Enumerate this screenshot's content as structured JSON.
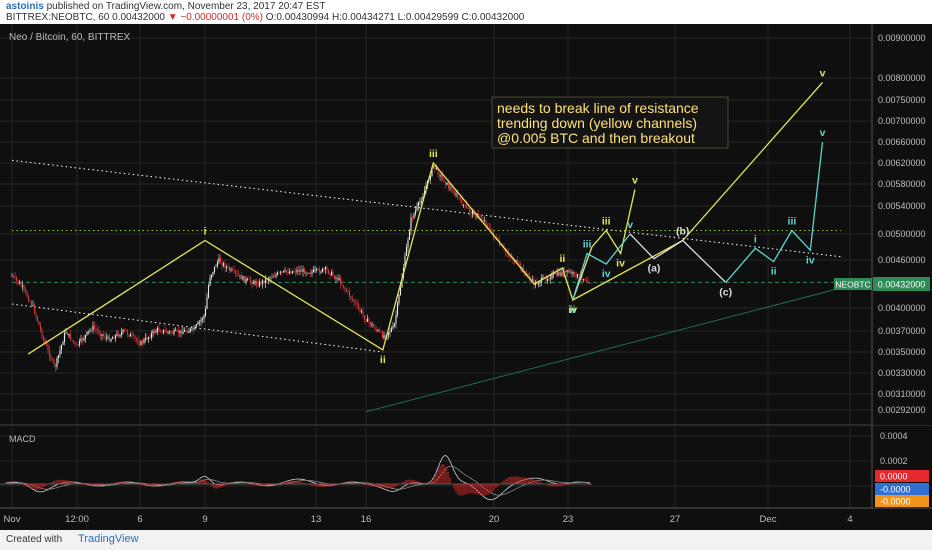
{
  "header": {
    "username": "astoinis",
    "published_text": "published on TradingView.com, November 23, 2017 20:47 EST",
    "symbol_line": "BITTREX:NEOBTC, 60",
    "price": "0.00432000",
    "change": "▼ −0.00000001 (0%)",
    "ohlc": "O:0.00430994 H:0.00434271 L:0.00429599 C:0.00432000"
  },
  "footer": {
    "created_with": "Created with",
    "brand": "TradingView"
  },
  "chart_data": [
    {
      "type": "line",
      "title": "Neo / Bitcoin, 60, BITTREX",
      "x_tick_labels": [
        "Nov",
        "12:00",
        "6",
        "9",
        "13",
        "16",
        "20",
        "23",
        "27",
        "Dec",
        "4"
      ],
      "y_tick_labels": [
        "0.00900000",
        "0.00800000",
        "0.00750000",
        "0.00700000",
        "0.00660000",
        "0.00620000",
        "0.00580000",
        "0.00540000",
        "0.00500000",
        "0.00460000",
        "0.00400000",
        "0.00370000",
        "0.00350000",
        "0.00330000",
        "0.00310000",
        "0.00292000"
      ],
      "last_price_label": {
        "symbol": "NEOBTC",
        "value": "0.00432000"
      },
      "annotation": [
        "needs to break line of resistance",
        "trending down (yellow channels)",
        "@0.005 BTC and then breakout"
      ],
      "price_series_approx": [
        {
          "date": "2017-11-05 00:00",
          "value": 0.0044
        },
        {
          "date": "2017-11-05 08:00",
          "value": 0.00425
        },
        {
          "date": "2017-11-05 16:00",
          "value": 0.004
        },
        {
          "date": "2017-11-06 00:00",
          "value": 0.0036
        },
        {
          "date": "2017-11-06 08:00",
          "value": 0.00335
        },
        {
          "date": "2017-11-06 16:00",
          "value": 0.0037
        },
        {
          "date": "2017-11-07 00:00",
          "value": 0.00355
        },
        {
          "date": "2017-11-07 12:00",
          "value": 0.00375
        },
        {
          "date": "2017-11-08 00:00",
          "value": 0.00362
        },
        {
          "date": "2017-11-08 12:00",
          "value": 0.0037
        },
        {
          "date": "2017-11-09 00:00",
          "value": 0.00358
        },
        {
          "date": "2017-11-09 12:00",
          "value": 0.00372
        },
        {
          "date": "2017-11-10 00:00",
          "value": 0.00368
        },
        {
          "date": "2017-11-10 16:00",
          "value": 0.00372
        },
        {
          "date": "2017-11-11 00:00",
          "value": 0.00392
        },
        {
          "date": "2017-11-11 04:00",
          "value": 0.00438
        },
        {
          "date": "2017-11-11 12:00",
          "value": 0.0046
        },
        {
          "date": "2017-11-12 00:00",
          "value": 0.00445
        },
        {
          "date": "2017-11-12 12:00",
          "value": 0.00435
        },
        {
          "date": "2017-11-13 00:00",
          "value": 0.0043
        },
        {
          "date": "2017-11-13 12:00",
          "value": 0.0044
        },
        {
          "date": "2017-11-14 00:00",
          "value": 0.00445
        },
        {
          "date": "2017-11-14 12:00",
          "value": 0.00447
        },
        {
          "date": "2017-11-15 00:00",
          "value": 0.00445
        },
        {
          "date": "2017-11-15 12:00",
          "value": 0.00448
        },
        {
          "date": "2017-11-16 00:00",
          "value": 0.00435
        },
        {
          "date": "2017-11-16 12:00",
          "value": 0.0041
        },
        {
          "date": "2017-11-17 00:00",
          "value": 0.00385
        },
        {
          "date": "2017-11-17 12:00",
          "value": 0.00365
        },
        {
          "date": "2017-11-17 20:00",
          "value": 0.00375
        },
        {
          "date": "2017-11-18 00:00",
          "value": 0.0042
        },
        {
          "date": "2017-11-18 08:00",
          "value": 0.0052
        },
        {
          "date": "2017-11-18 16:00",
          "value": 0.00555
        },
        {
          "date": "2017-11-19 00:00",
          "value": 0.00615
        },
        {
          "date": "2017-11-19 08:00",
          "value": 0.00585
        },
        {
          "date": "2017-11-19 16:00",
          "value": 0.0056
        },
        {
          "date": "2017-11-20 00:00",
          "value": 0.00535
        },
        {
          "date": "2017-11-20 12:00",
          "value": 0.0052
        },
        {
          "date": "2017-11-21 00:00",
          "value": 0.0048
        },
        {
          "date": "2017-11-21 12:00",
          "value": 0.00455
        },
        {
          "date": "2017-11-22 00:00",
          "value": 0.0043
        },
        {
          "date": "2017-11-22 12:00",
          "value": 0.0044
        },
        {
          "date": "2017-11-23 00:00",
          "value": 0.00445
        },
        {
          "date": "2017-11-23 12:00",
          "value": 0.00438
        },
        {
          "date": "2017-11-23 20:00",
          "value": 0.00432
        }
      ],
      "wave_paths": [
        {
          "color": "#e6e65a",
          "points": [
            {
              "date": "2017-11-05 12:00",
              "value": 0.00348,
              "label": ""
            },
            {
              "date": "2017-11-11 00:00",
              "value": 0.0049,
              "label": "i"
            },
            {
              "date": "2017-11-17 12:00",
              "value": 0.00352,
              "label": "ii"
            },
            {
              "date": "2017-11-19 00:00",
              "value": 0.0062,
              "label": "iii"
            },
            {
              "date": "2017-11-22 00:00",
              "value": 0.0043,
              "label": ""
            },
            {
              "date": "2017-11-22 20:00",
              "value": 0.0045,
              "label": "ii"
            },
            {
              "date": "2017-11-23 04:00",
              "value": 0.0041,
              "label": ""
            },
            {
              "date": "2017-11-23 20:00",
              "value": 0.0048,
              "label": ""
            },
            {
              "date": "2017-11-24 08:00",
              "value": 0.00505,
              "label": "iii"
            },
            {
              "date": "2017-11-24 20:00",
              "value": 0.0047,
              "label": "iv"
            },
            {
              "date": "2017-11-25 08:00",
              "value": 0.0057,
              "label": "v"
            }
          ]
        },
        {
          "color": "#e6e65a",
          "points": [
            {
              "date": "2017-11-23 04:00",
              "value": 0.0041,
              "label": "iv"
            },
            {
              "date": "2017-11-27 00:00",
              "value": 0.0049,
              "label": ""
            },
            {
              "date": "2017-12-03 12:00",
              "value": 0.0079,
              "label": "v"
            }
          ]
        },
        {
          "color": "#5fd3d3",
          "points": [
            {
              "date": "2017-11-23 04:00",
              "value": 0.0041,
              "label": "ii"
            },
            {
              "date": "2017-11-23 16:00",
              "value": 0.0047,
              "label": "iii"
            },
            {
              "date": "2017-11-24 08:00",
              "value": 0.00455,
              "label": "iv"
            },
            {
              "date": "2017-11-25 04:00",
              "value": 0.005,
              "label": "v"
            }
          ]
        },
        {
          "color": "#dddddd",
          "points": [
            {
              "date": "2017-11-25 04:00",
              "value": 0.005,
              "label": ""
            },
            {
              "date": "2017-11-26 00:00",
              "value": 0.00462,
              "label": "(a)"
            },
            {
              "date": "2017-11-27 00:00",
              "value": 0.0049,
              "label": "(b)"
            },
            {
              "date": "2017-11-28 12:00",
              "value": 0.00432,
              "label": "(c)"
            }
          ]
        },
        {
          "color": "#5fd3d3",
          "points": [
            {
              "date": "2017-11-28 12:00",
              "value": 0.00432,
              "label": ""
            },
            {
              "date": "2017-11-29 20:00",
              "value": 0.00478,
              "label": "i"
            },
            {
              "date": "2017-11-30 20:00",
              "value": 0.00458,
              "label": "ii"
            },
            {
              "date": "2017-12-01 20:00",
              "value": 0.00505,
              "label": "iii"
            },
            {
              "date": "2017-12-02 20:00",
              "value": 0.00475,
              "label": "iv"
            },
            {
              "date": "2017-12-03 12:00",
              "value": 0.0066,
              "label": "v"
            }
          ]
        }
      ],
      "trend_lines": [
        {
          "style": "dotted",
          "color": "#ffffff",
          "from": {
            "date": "2017-11-05 00:00",
            "value": 0.00625
          },
          "to": {
            "date": "2017-12-04 12:00",
            "value": 0.00465
          }
        },
        {
          "style": "dotted",
          "color": "#ffffff",
          "from": {
            "date": "2017-11-05 00:00",
            "value": 0.00405
          },
          "to": {
            "date": "2017-11-17 12:00",
            "value": 0.0035
          }
        },
        {
          "style": "dotted",
          "color": "#9acd32",
          "from": {
            "date": "2017-11-05 00:00",
            "value": 0.00505
          },
          "to": {
            "date": "2017-12-04 12:00",
            "value": 0.00505
          }
        },
        {
          "style": "dashed",
          "color": "#2e8b57",
          "from": {
            "date": "2017-11-05 00:00",
            "value": 0.00432
          },
          "to": {
            "date": "2017-12-04 12:00",
            "value": 0.00432
          }
        },
        {
          "style": "solid",
          "color": "#1f6e4a",
          "from": {
            "date": "2017-11-17 00:00",
            "value": 0.0029
          },
          "to": {
            "date": "2017-12-04 12:00",
            "value": 0.00425
          }
        }
      ]
    },
    {
      "type": "line",
      "title": "MACD",
      "y_tick_labels": [
        "0.0004",
        "0.0002"
      ],
      "value_labels": [
        "0.0000",
        "-0.0000",
        "-0.0000"
      ],
      "value_label_colors": [
        "#e8282f",
        "#2f6fd1",
        "#f0941c"
      ]
    }
  ],
  "colors": {
    "background": "#0f0f0f",
    "grid": "#242424",
    "candle": "#d83a3a",
    "wave_yellow": "#e6e65a",
    "wave_cyan": "#5fd3d3",
    "wave_white": "#dddddd",
    "annotation_text": "#ffe27a",
    "price_label": "#2e8b57"
  }
}
